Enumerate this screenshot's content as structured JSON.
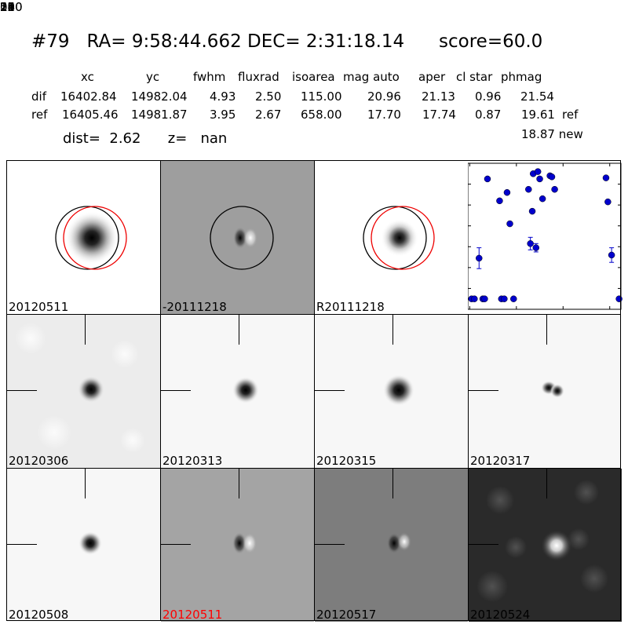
{
  "header": {
    "title": "#79   RA= 9:58:44.662 DEC= 2:31:18.14      score=60.0",
    "columns": [
      "xc",
      "yc",
      "fwhm",
      "fluxrad",
      "isoarea",
      "mag auto",
      "aper",
      "cl star",
      "phmag"
    ],
    "rows": [
      {
        "label": "dif",
        "values": [
          "16402.84",
          "14982.04",
          "4.93",
          "2.50",
          "115.00",
          "20.96",
          "21.13",
          "0.96",
          "21.54"
        ],
        "suffix": ""
      },
      {
        "label": "ref",
        "values": [
          "16405.46",
          "14981.87",
          "3.95",
          "2.67",
          "658.00",
          "17.70",
          "17.74",
          "0.87",
          "19.61"
        ],
        "suffix": "ref"
      }
    ],
    "new_mag": "18.87 new",
    "dist_line": "dist=  2.62      z=   nan"
  },
  "panels": [
    {
      "label": "20120511",
      "label_color": "#000000"
    },
    {
      "label": "-20111218",
      "label_color": "#000000"
    },
    {
      "label": "R20111218",
      "label_color": "#000000"
    },
    {
      "label": "20120306",
      "label_color": "#000000"
    },
    {
      "label": "20120313",
      "label_color": "#000000"
    },
    {
      "label": "20120315",
      "label_color": "#000000"
    },
    {
      "label": "20120317",
      "label_color": "#000000"
    },
    {
      "label": "20120508",
      "label_color": "#000000"
    },
    {
      "label": "20120511",
      "label_color": "#ff0000"
    },
    {
      "label": "20120517",
      "label_color": "#000000"
    },
    {
      "label": "20120524",
      "label_color": "#000000"
    }
  ],
  "chart_data": {
    "type": "scatter",
    "xlim": [
      -2,
      162
    ],
    "ylim": [
      26,
      19
    ],
    "xticks": [
      "0",
      "50",
      "100",
      "150"
    ],
    "yticks": [
      "19",
      "20",
      "21",
      "22",
      "23",
      "24",
      "25",
      "26"
    ],
    "marker_color": "#0000cc",
    "points": [
      {
        "x": 2,
        "y": 25.5
      },
      {
        "x": 5,
        "y": 25.5
      },
      {
        "x": 10,
        "y": 23.55,
        "err": 0.5
      },
      {
        "x": 14,
        "y": 25.5
      },
      {
        "x": 16,
        "y": 25.5
      },
      {
        "x": 19,
        "y": 19.75
      },
      {
        "x": 32,
        "y": 20.8
      },
      {
        "x": 34,
        "y": 25.5
      },
      {
        "x": 37,
        "y": 25.5
      },
      {
        "x": 40,
        "y": 20.4
      },
      {
        "x": 43,
        "y": 21.9
      },
      {
        "x": 47,
        "y": 25.5
      },
      {
        "x": 63,
        "y": 20.25
      },
      {
        "x": 65,
        "y": 22.85,
        "err": 0.3
      },
      {
        "x": 67,
        "y": 21.3
      },
      {
        "x": 68,
        "y": 19.5
      },
      {
        "x": 71,
        "y": 23.05,
        "err": 0.2
      },
      {
        "x": 73,
        "y": 19.4
      },
      {
        "x": 75,
        "y": 19.75
      },
      {
        "x": 78,
        "y": 20.7
      },
      {
        "x": 86,
        "y": 19.6
      },
      {
        "x": 88,
        "y": 19.65
      },
      {
        "x": 91,
        "y": 20.25
      },
      {
        "x": 146,
        "y": 19.7
      },
      {
        "x": 148,
        "y": 20.85
      },
      {
        "x": 152,
        "y": 23.4,
        "err": 0.35
      },
      {
        "x": 160,
        "y": 25.5
      }
    ]
  }
}
